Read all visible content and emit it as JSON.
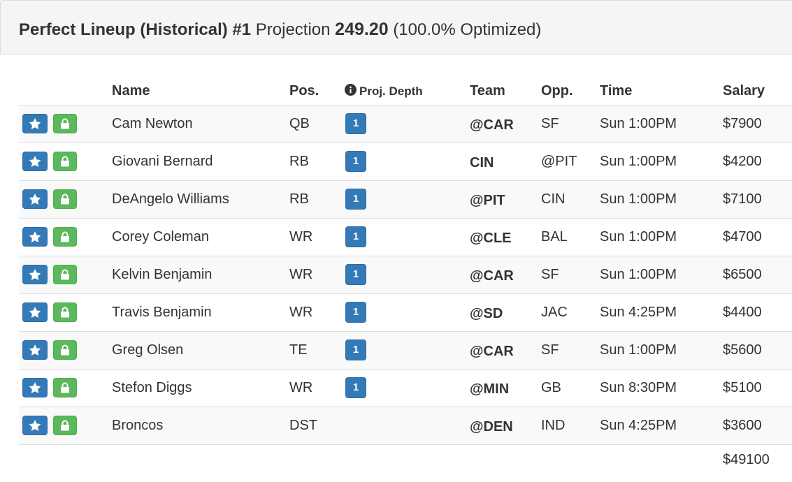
{
  "header": {
    "title_bold": "Perfect Lineup (Historical) #1",
    "projection_label": "Projection",
    "projection_value": "249.20",
    "optimized": "(100.0% Optimized)"
  },
  "columns": {
    "name": "Name",
    "pos": "Pos.",
    "depth": "Proj. Depth",
    "team": "Team",
    "opp": "Opp.",
    "time": "Time",
    "salary": "Salary"
  },
  "icons": {
    "star": "star-icon",
    "lock": "lock-icon",
    "info": "info-circle-icon"
  },
  "colors": {
    "star_button": "#337ab7",
    "lock_button": "#5cb85c",
    "depth_badge": "#337ab7"
  },
  "rows": [
    {
      "name": "Cam Newton",
      "pos": "QB",
      "depth": "1",
      "team": "@CAR",
      "opp": "SF",
      "time": "Sun 1:00PM",
      "salary": "$7900"
    },
    {
      "name": "Giovani Bernard",
      "pos": "RB",
      "depth": "1",
      "team": "CIN",
      "opp": "@PIT",
      "time": "Sun 1:00PM",
      "salary": "$4200"
    },
    {
      "name": "DeAngelo Williams",
      "pos": "RB",
      "depth": "1",
      "team": "@PIT",
      "opp": "CIN",
      "time": "Sun 1:00PM",
      "salary": "$7100"
    },
    {
      "name": "Corey Coleman",
      "pos": "WR",
      "depth": "1",
      "team": "@CLE",
      "opp": "BAL",
      "time": "Sun 1:00PM",
      "salary": "$4700"
    },
    {
      "name": "Kelvin Benjamin",
      "pos": "WR",
      "depth": "1",
      "team": "@CAR",
      "opp": "SF",
      "time": "Sun 1:00PM",
      "salary": "$6500"
    },
    {
      "name": "Travis Benjamin",
      "pos": "WR",
      "depth": "1",
      "team": "@SD",
      "opp": "JAC",
      "time": "Sun 4:25PM",
      "salary": "$4400"
    },
    {
      "name": "Greg Olsen",
      "pos": "TE",
      "depth": "1",
      "team": "@CAR",
      "opp": "SF",
      "time": "Sun 1:00PM",
      "salary": "$5600"
    },
    {
      "name": "Stefon Diggs",
      "pos": "WR",
      "depth": "1",
      "team": "@MIN",
      "opp": "GB",
      "time": "Sun 8:30PM",
      "salary": "$5100"
    },
    {
      "name": "Broncos",
      "pos": "DST",
      "depth": "",
      "team": "@DEN",
      "opp": "IND",
      "time": "Sun 4:25PM",
      "salary": "$3600"
    }
  ],
  "total_salary": "$49100"
}
